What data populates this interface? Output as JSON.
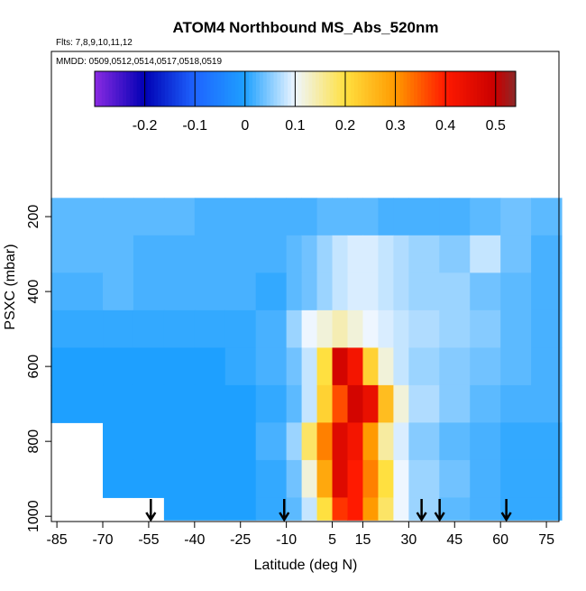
{
  "chart_data": {
    "type": "heatmap",
    "title": "ATOM4 Northbound MS_Abs_520nm",
    "subtitle": "Flts: 7,8,9,10,11,12",
    "annotation": "MMDD: 0509,0512,0514,0517,0518,0519",
    "x_label": "Latitude (deg N)",
    "y_label": "PSXC (mbar)",
    "xlim": [
      -86.8,
      79.1
    ],
    "xticks": [
      -85,
      -70,
      -55,
      -40,
      -25,
      -10,
      5,
      15,
      30,
      45,
      60,
      75
    ],
    "ylim": [
      -241,
      1014
    ],
    "yticks": [
      200,
      400,
      600,
      800,
      1000
    ],
    "lat_edges": [
      -87,
      -70,
      -60,
      -50,
      -40,
      -30,
      -20,
      -10,
      -5,
      0,
      5,
      10,
      15,
      20,
      25,
      30,
      40,
      50,
      60,
      70,
      80
    ],
    "pres_edges": [
      150,
      250,
      350,
      450,
      550,
      650,
      750,
      850,
      950,
      1010
    ],
    "values": [
      [
        0.03,
        0.03,
        0.03,
        0.03,
        0.02,
        0.02,
        0.02,
        0.02,
        0.02,
        0.03,
        0.03,
        0.03,
        0.03,
        0.02,
        0.02,
        0.02,
        0.02,
        0.03,
        0.04,
        0.03
      ],
      [
        0.03,
        0.03,
        0.02,
        0.02,
        0.02,
        0.02,
        0.02,
        0.03,
        0.04,
        0.06,
        0.08,
        0.09,
        0.09,
        0.08,
        0.07,
        0.06,
        0.05,
        0.08,
        0.04,
        0.02
      ],
      [
        0.02,
        0.03,
        0.02,
        0.02,
        0.02,
        0.02,
        0.01,
        0.03,
        0.04,
        0.06,
        0.08,
        0.09,
        0.09,
        0.08,
        0.07,
        0.06,
        0.06,
        0.04,
        0.03,
        0.02
      ],
      [
        0.01,
        0.01,
        0.01,
        0.01,
        0.01,
        0.01,
        0.02,
        0.06,
        0.1,
        0.12,
        0.14,
        0.12,
        0.1,
        0.09,
        0.08,
        0.07,
        0.06,
        0.05,
        0.03,
        0.02
      ],
      [
        0,
        0,
        0,
        0,
        0,
        0.01,
        0.02,
        0.04,
        0.08,
        0.2,
        0.48,
        0.42,
        0.22,
        0.12,
        0.08,
        0.06,
        0.05,
        0.04,
        0.03,
        0.02
      ],
      [
        0,
        0,
        0,
        0,
        0,
        0,
        0.01,
        0.03,
        0.08,
        0.22,
        0.36,
        0.48,
        0.44,
        0.25,
        0.12,
        0.07,
        0.05,
        0.03,
        0.02,
        0.02
      ],
      [
        null,
        0,
        0,
        0,
        0,
        0,
        0.02,
        0.06,
        0.18,
        0.32,
        0.46,
        0.42,
        0.3,
        0.15,
        0.09,
        0.05,
        0.03,
        0.02,
        0.01,
        0.01
      ],
      [
        null,
        0,
        0,
        0,
        0,
        0,
        0.01,
        0.04,
        0.12,
        0.28,
        0.46,
        0.4,
        0.32,
        0.2,
        0.1,
        0.06,
        0.04,
        0.02,
        0.01,
        0.01
      ],
      [
        null,
        null,
        null,
        0,
        0,
        0,
        0.01,
        0.03,
        0.08,
        0.2,
        0.38,
        0.4,
        0.3,
        0.18,
        0.1,
        0.06,
        0.03,
        0.02,
        0.01,
        0.01
      ]
    ],
    "colorbar_lim": [
      -0.3,
      0.54
    ],
    "colorbar_ticks": [
      -0.2,
      -0.1,
      0.0,
      0.1,
      0.2,
      0.3,
      0.4,
      0.5
    ],
    "colorscale": [
      {
        "value": -0.3,
        "color": "#8a2be2"
      },
      {
        "value": -0.2,
        "color": "#0000b4"
      },
      {
        "value": -0.1,
        "color": "#1e64ff"
      },
      {
        "value": 0.0,
        "color": "#1ea0ff"
      },
      {
        "value": 0.1,
        "color": "#eef6ff"
      },
      {
        "value": 0.2,
        "color": "#ffe040"
      },
      {
        "value": 0.3,
        "color": "#ff9a00"
      },
      {
        "value": 0.4,
        "color": "#ff1a00"
      },
      {
        "value": 0.5,
        "color": "#c80000"
      },
      {
        "value": 0.54,
        "color": "#8c2828"
      }
    ],
    "arrows": [
      -54.3,
      -10.7,
      34.2,
      40.1,
      61.9
    ]
  }
}
